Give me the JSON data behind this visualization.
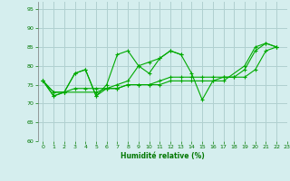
{
  "xlabel": "Humidité relative (%)",
  "xlim": [
    -0.5,
    23
  ],
  "ylim": [
    60,
    97
  ],
  "yticks": [
    60,
    65,
    70,
    75,
    80,
    85,
    90,
    95
  ],
  "xticks": [
    0,
    1,
    2,
    3,
    4,
    5,
    6,
    7,
    8,
    9,
    10,
    11,
    12,
    13,
    14,
    15,
    16,
    17,
    18,
    19,
    20,
    21,
    22,
    23
  ],
  "bg_color": "#d5eeee",
  "grid_color": "#b0d0d0",
  "line_color": "#00aa00",
  "line1_x": [
    0,
    1,
    2,
    3,
    4,
    5,
    6,
    7,
    8,
    9,
    10,
    11,
    12,
    13
  ],
  "line1_y": [
    76,
    72,
    73,
    78,
    79,
    72,
    75,
    83,
    84,
    80,
    78,
    82,
    84,
    83
  ],
  "line2_x": [
    0,
    1,
    2,
    3,
    4,
    5,
    6,
    7,
    8,
    9,
    10,
    11,
    12,
    13,
    14,
    15,
    16,
    17,
    19,
    20,
    21,
    22
  ],
  "line2_y": [
    76,
    72,
    73,
    78,
    79,
    72,
    74,
    75,
    76,
    80,
    81,
    82,
    84,
    83,
    78,
    71,
    76,
    76,
    80,
    85,
    86,
    85
  ],
  "line3_x": [
    0,
    1,
    2,
    5,
    6,
    7,
    8,
    9,
    10,
    11,
    12,
    13,
    14,
    15,
    16,
    17,
    18,
    19,
    20,
    21,
    22
  ],
  "line3_y": [
    76,
    73,
    73,
    73,
    74,
    74,
    75,
    75,
    75,
    76,
    77,
    77,
    77,
    77,
    77,
    77,
    77,
    79,
    84,
    86,
    85
  ],
  "line4_x": [
    0,
    1,
    2,
    3,
    4,
    5,
    6,
    7,
    8,
    9,
    10,
    11,
    12,
    13,
    14,
    15,
    16,
    17,
    18,
    19,
    20,
    21,
    22
  ],
  "line4_y": [
    76,
    73,
    73,
    74,
    74,
    74,
    74,
    74,
    75,
    75,
    75,
    75,
    76,
    76,
    76,
    76,
    76,
    77,
    77,
    77,
    79,
    84,
    85
  ]
}
